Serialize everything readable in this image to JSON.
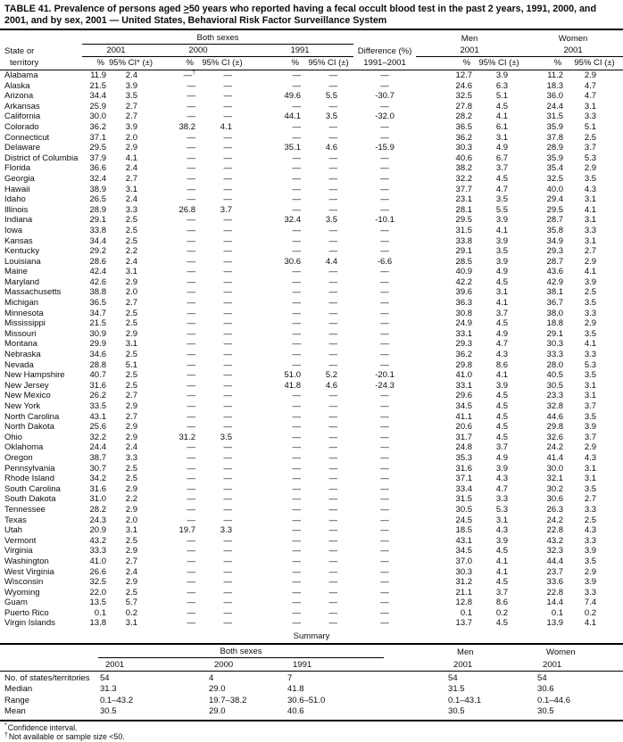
{
  "title": {
    "pre": "TABLE 41. Prevalence of persons aged ",
    "geq": ">",
    "post": "50 years who reported having a fecal occult blood test in the past 2 years, 1991, 2000, and 2001, and by sex, 2001 — United States, Behavioral Risk Factor Surveillance System"
  },
  "header": {
    "group_both": "Both sexes",
    "group_men": "Men",
    "group_women": "Women",
    "state_line1": "State or",
    "state_line2": "territory",
    "year_2001": "2001",
    "year_2000": "2000",
    "year_1991": "1991",
    "difference_line1": "Difference (%)",
    "difference_line2": "1991–2001",
    "pct": "%",
    "ci_first": "95% CI* (±)",
    "ci": "95% CI (±)"
  },
  "rows": [
    {
      "state": "Alabama",
      "values": [
        "11.9",
        "2.4",
        "—†",
        "—",
        "—",
        "—",
        "—",
        "12.7",
        "3.9",
        "11.2",
        "2.9"
      ]
    },
    {
      "state": "Alaska",
      "values": [
        "21.5",
        "3.9",
        "—",
        "—",
        "—",
        "—",
        "—",
        "24.6",
        "6.3",
        "18.3",
        "4.7"
      ]
    },
    {
      "state": "Arizona",
      "values": [
        "34.4",
        "3.5",
        "—",
        "—",
        "49.6",
        "5.5",
        "-30.7",
        "32.5",
        "5.1",
        "36.0",
        "4.7"
      ]
    },
    {
      "state": "Arkansas",
      "values": [
        "25.9",
        "2.7",
        "—",
        "—",
        "—",
        "—",
        "—",
        "27.8",
        "4.5",
        "24.4",
        "3.1"
      ]
    },
    {
      "state": "California",
      "values": [
        "30.0",
        "2.7",
        "—",
        "—",
        "44.1",
        "3.5",
        "-32.0",
        "28.2",
        "4.1",
        "31.5",
        "3.3"
      ]
    },
    {
      "state": "Colorado",
      "values": [
        "36.2",
        "3.9",
        "38.2",
        "4.1",
        "—",
        "—",
        "—",
        "36.5",
        "6.1",
        "35.9",
        "5.1"
      ]
    },
    {
      "state": "Connecticut",
      "values": [
        "37.1",
        "2.0",
        "—",
        "—",
        "—",
        "—",
        "—",
        "36.2",
        "3.1",
        "37.8",
        "2.5"
      ]
    },
    {
      "state": "Delaware",
      "values": [
        "29.5",
        "2.9",
        "—",
        "—",
        "35.1",
        "4.6",
        "-15.9",
        "30.3",
        "4.9",
        "28.9",
        "3.7"
      ]
    },
    {
      "state": "District of Columbia",
      "values": [
        "37.9",
        "4.1",
        "—",
        "—",
        "—",
        "—",
        "—",
        "40.6",
        "6.7",
        "35.9",
        "5.3"
      ]
    },
    {
      "state": "Florida",
      "values": [
        "36.6",
        "2.4",
        "—",
        "—",
        "—",
        "—",
        "—",
        "38.2",
        "3.7",
        "35.4",
        "2.9"
      ]
    },
    {
      "state": "Georgia",
      "values": [
        "32.4",
        "2.7",
        "—",
        "—",
        "—",
        "—",
        "—",
        "32.2",
        "4.5",
        "32.5",
        "3.5"
      ]
    },
    {
      "state": "Hawaii",
      "values": [
        "38.9",
        "3.1",
        "—",
        "—",
        "—",
        "—",
        "—",
        "37.7",
        "4.7",
        "40.0",
        "4.3"
      ]
    },
    {
      "state": "Idaho",
      "values": [
        "26.5",
        "2.4",
        "—",
        "—",
        "—",
        "—",
        "—",
        "23.1",
        "3.5",
        "29.4",
        "3.1"
      ]
    },
    {
      "state": "Illinois",
      "values": [
        "28.9",
        "3.3",
        "26.8",
        "3.7",
        "—",
        "—",
        "—",
        "28.1",
        "5.5",
        "29.5",
        "4.1"
      ]
    },
    {
      "state": "Indiana",
      "values": [
        "29.1",
        "2.5",
        "—",
        "—",
        "32.4",
        "3.5",
        "-10.1",
        "29.5",
        "3.9",
        "28.7",
        "3.1"
      ]
    },
    {
      "state": "Iowa",
      "values": [
        "33.8",
        "2.5",
        "—",
        "—",
        "—",
        "—",
        "—",
        "31.5",
        "4.1",
        "35.8",
        "3.3"
      ]
    },
    {
      "state": "Kansas",
      "values": [
        "34.4",
        "2.5",
        "—",
        "—",
        "—",
        "—",
        "—",
        "33.8",
        "3.9",
        "34.9",
        "3.1"
      ]
    },
    {
      "state": "Kentucky",
      "values": [
        "29.2",
        "2.2",
        "—",
        "—",
        "—",
        "—",
        "—",
        "29.1",
        "3.5",
        "29.3",
        "2.7"
      ]
    },
    {
      "state": "Louisiana",
      "values": [
        "28.6",
        "2.4",
        "—",
        "—",
        "30.6",
        "4.4",
        "-6.6",
        "28.5",
        "3.9",
        "28.7",
        "2.9"
      ]
    },
    {
      "state": "Maine",
      "values": [
        "42.4",
        "3.1",
        "—",
        "—",
        "—",
        "—",
        "—",
        "40.9",
        "4.9",
        "43.6",
        "4.1"
      ]
    },
    {
      "state": "Maryland",
      "values": [
        "42.6",
        "2.9",
        "—",
        "—",
        "—",
        "—",
        "—",
        "42.2",
        "4.5",
        "42.9",
        "3.9"
      ]
    },
    {
      "state": "Massachusetts",
      "values": [
        "38.8",
        "2.0",
        "—",
        "—",
        "—",
        "—",
        "—",
        "39.6",
        "3.1",
        "38.1",
        "2.5"
      ]
    },
    {
      "state": "Michigan",
      "values": [
        "36.5",
        "2.7",
        "—",
        "—",
        "—",
        "—",
        "—",
        "36.3",
        "4.1",
        "36.7",
        "3.5"
      ]
    },
    {
      "state": "Minnesota",
      "values": [
        "34.7",
        "2.5",
        "—",
        "—",
        "—",
        "—",
        "—",
        "30.8",
        "3.7",
        "38.0",
        "3.3"
      ]
    },
    {
      "state": "Mississippi",
      "values": [
        "21.5",
        "2.5",
        "—",
        "—",
        "—",
        "—",
        "—",
        "24.9",
        "4.5",
        "18.8",
        "2.9"
      ]
    },
    {
      "state": "Missouri",
      "values": [
        "30.9",
        "2.9",
        "—",
        "—",
        "—",
        "—",
        "—",
        "33.1",
        "4.9",
        "29.1",
        "3.5"
      ]
    },
    {
      "state": "Montana",
      "values": [
        "29.9",
        "3.1",
        "—",
        "—",
        "—",
        "—",
        "—",
        "29.3",
        "4.7",
        "30.3",
        "4.1"
      ]
    },
    {
      "state": "Nebraska",
      "values": [
        "34.6",
        "2.5",
        "—",
        "—",
        "—",
        "—",
        "—",
        "36.2",
        "4.3",
        "33.3",
        "3.3"
      ]
    },
    {
      "state": "Nevada",
      "values": [
        "28.8",
        "5.1",
        "—",
        "—",
        "—",
        "—",
        "—",
        "29.8",
        "8.6",
        "28.0",
        "5.3"
      ]
    },
    {
      "state": "New Hampshire",
      "values": [
        "40.7",
        "2.5",
        "—",
        "—",
        "51.0",
        "5.2",
        "-20.1",
        "41.0",
        "4.1",
        "40.5",
        "3.5"
      ]
    },
    {
      "state": "New Jersey",
      "values": [
        "31.6",
        "2.5",
        "—",
        "—",
        "41.8",
        "4.6",
        "-24.3",
        "33.1",
        "3.9",
        "30.5",
        "3.1"
      ]
    },
    {
      "state": "New Mexico",
      "values": [
        "26.2",
        "2.7",
        "—",
        "—",
        "—",
        "—",
        "—",
        "29.6",
        "4.5",
        "23.3",
        "3.1"
      ]
    },
    {
      "state": "New York",
      "values": [
        "33.5",
        "2.9",
        "—",
        "—",
        "—",
        "—",
        "—",
        "34.5",
        "4.5",
        "32.8",
        "3.7"
      ]
    },
    {
      "state": "North Carolina",
      "values": [
        "43.1",
        "2.7",
        "—",
        "—",
        "—",
        "—",
        "—",
        "41.1",
        "4.5",
        "44.6",
        "3.5"
      ]
    },
    {
      "state": "North Dakota",
      "values": [
        "25.6",
        "2.9",
        "—",
        "—",
        "—",
        "—",
        "—",
        "20.6",
        "4.5",
        "29.8",
        "3.9"
      ]
    },
    {
      "state": "Ohio",
      "values": [
        "32.2",
        "2.9",
        "31.2",
        "3.5",
        "—",
        "—",
        "—",
        "31.7",
        "4.5",
        "32.6",
        "3.7"
      ]
    },
    {
      "state": "Oklahoma",
      "values": [
        "24.4",
        "2.4",
        "—",
        "—",
        "—",
        "—",
        "—",
        "24.8",
        "3.7",
        "24.2",
        "2.9"
      ]
    },
    {
      "state": "Oregon",
      "values": [
        "38.7",
        "3.3",
        "—",
        "—",
        "—",
        "—",
        "—",
        "35.3",
        "4.9",
        "41.4",
        "4.3"
      ]
    },
    {
      "state": "Pennsylvania",
      "values": [
        "30.7",
        "2.5",
        "—",
        "—",
        "—",
        "—",
        "—",
        "31.6",
        "3.9",
        "30.0",
        "3.1"
      ]
    },
    {
      "state": "Rhode Island",
      "values": [
        "34.2",
        "2.5",
        "—",
        "—",
        "—",
        "—",
        "—",
        "37.1",
        "4.3",
        "32.1",
        "3.1"
      ]
    },
    {
      "state": "South Carolina",
      "values": [
        "31.6",
        "2.9",
        "—",
        "—",
        "—",
        "—",
        "—",
        "33.4",
        "4.7",
        "30.2",
        "3.5"
      ]
    },
    {
      "state": "South Dakota",
      "values": [
        "31.0",
        "2.2",
        "—",
        "—",
        "—",
        "—",
        "—",
        "31.5",
        "3.3",
        "30.6",
        "2.7"
      ]
    },
    {
      "state": "Tennessee",
      "values": [
        "28.2",
        "2.9",
        "—",
        "—",
        "—",
        "—",
        "—",
        "30.5",
        "5.3",
        "26.3",
        "3.3"
      ]
    },
    {
      "state": "Texas",
      "values": [
        "24.3",
        "2.0",
        "—",
        "—",
        "—",
        "—",
        "—",
        "24.5",
        "3.1",
        "24.2",
        "2.5"
      ]
    },
    {
      "state": "Utah",
      "values": [
        "20.9",
        "3.1",
        "19.7",
        "3.3",
        "—",
        "—",
        "—",
        "18.5",
        "4.3",
        "22.8",
        "4.3"
      ]
    },
    {
      "state": "Vermont",
      "values": [
        "43.2",
        "2.5",
        "—",
        "—",
        "—",
        "—",
        "—",
        "43.1",
        "3.9",
        "43.2",
        "3.3"
      ]
    },
    {
      "state": "Virginia",
      "values": [
        "33.3",
        "2.9",
        "—",
        "—",
        "—",
        "—",
        "—",
        "34.5",
        "4.5",
        "32.3",
        "3.9"
      ]
    },
    {
      "state": "Washington",
      "values": [
        "41.0",
        "2.7",
        "—",
        "—",
        "—",
        "—",
        "—",
        "37.0",
        "4.1",
        "44.4",
        "3.5"
      ]
    },
    {
      "state": "West Virginia",
      "values": [
        "26.6",
        "2.4",
        "—",
        "—",
        "—",
        "—",
        "—",
        "30.3",
        "4.1",
        "23.7",
        "2.9"
      ]
    },
    {
      "state": "Wisconsin",
      "values": [
        "32.5",
        "2.9",
        "—",
        "—",
        "—",
        "—",
        "—",
        "31.2",
        "4.5",
        "33.6",
        "3.9"
      ]
    },
    {
      "state": "Wyoming",
      "values": [
        "22.0",
        "2.5",
        "—",
        "—",
        "—",
        "—",
        "—",
        "21.1",
        "3.7",
        "22.8",
        "3.3"
      ]
    },
    {
      "state": "Guam",
      "values": [
        "13.5",
        "5.7",
        "—",
        "—",
        "—",
        "—",
        "—",
        "12.8",
        "8.6",
        "14.4",
        "7.4"
      ]
    },
    {
      "state": "Puerto Rico",
      "values": [
        "0.1",
        "0.2",
        "—",
        "—",
        "—",
        "—",
        "—",
        "0.1",
        "0.2",
        "0.1",
        "0.2"
      ]
    },
    {
      "state": "Virgin Islands",
      "values": [
        "13.8",
        "3.1",
        "—",
        "—",
        "—",
        "—",
        "—",
        "13.7",
        "4.5",
        "13.9",
        "4.1"
      ]
    }
  ],
  "summary": {
    "label": "Summary",
    "columns": [
      "2001",
      "2000",
      "1991",
      "2001",
      "2001"
    ],
    "row_labels": [
      "No. of states/territories",
      "Median",
      "Range",
      "Mean"
    ],
    "rows": [
      [
        "54",
        "4",
        "7",
        "54",
        "54"
      ],
      [
        "31.3",
        "29.0",
        "41.8",
        "31.5",
        "30.6"
      ],
      [
        "0.1–43.2",
        "19.7–38.2",
        "30.6–51.0",
        "0.1–43.1",
        "0.1–44.6"
      ],
      [
        "30.5",
        "29.0",
        "40.6",
        "30.5",
        "30.5"
      ]
    ]
  },
  "footnotes": [
    {
      "marker": "*",
      "text": "Confidence interval."
    },
    {
      "marker": "†",
      "text": "Not available or sample size <50."
    }
  ]
}
